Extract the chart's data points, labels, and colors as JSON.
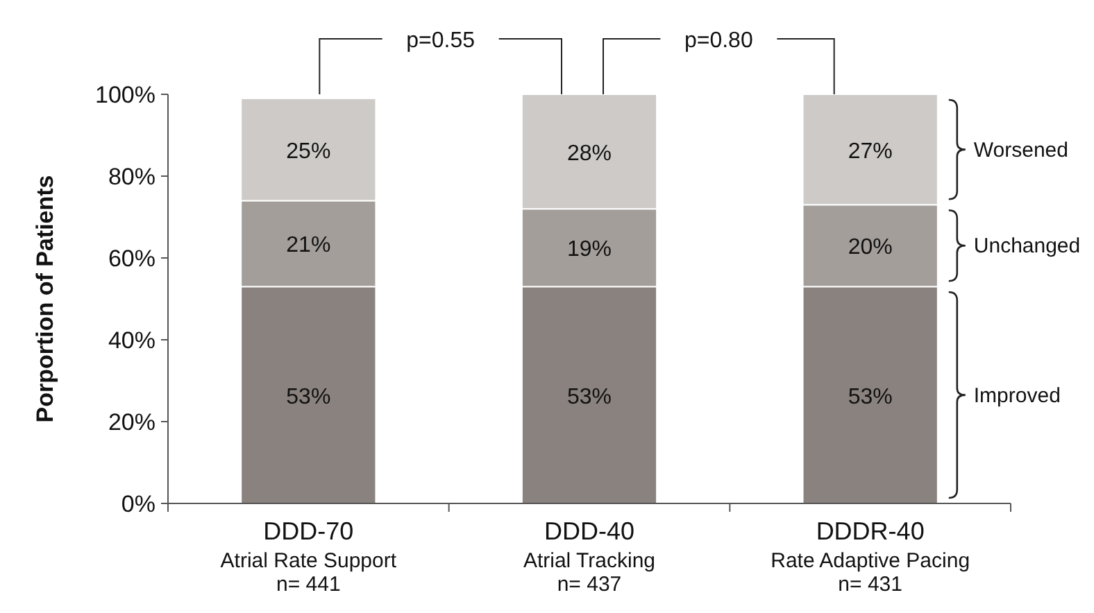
{
  "chart_data": {
    "type": "bar",
    "stacked": true,
    "ylabel": "Porportion of Patients",
    "categories": [
      "DDD-70\nAtrial Rate Support\nn= 441",
      "DDD-40\nAtrial Tracking\nn= 437",
      "DDDR-40\nRate Adaptive Pacing\nn= 431"
    ],
    "series": [
      {
        "name": "Improved",
        "color": "#8a827e",
        "values": [
          53,
          53,
          53
        ],
        "value_labels": [
          "53%",
          "53%",
          "53%"
        ]
      },
      {
        "name": "Unchanged",
        "color": "#a39e9a",
        "values": [
          21,
          19,
          20
        ],
        "value_labels": [
          "21%",
          "19%",
          "20%"
        ]
      },
      {
        "name": "Worsened",
        "color": "#cdcac7",
        "values": [
          25,
          28,
          27
        ],
        "value_labels": [
          "25%",
          "28%",
          "27%"
        ]
      }
    ],
    "ylim": [
      0,
      100
    ],
    "yticks": [
      {
        "value": 0,
        "label": "0%"
      },
      {
        "value": 20,
        "label": "20%"
      },
      {
        "value": 40,
        "label": "40%"
      },
      {
        "value": 60,
        "label": "60%"
      },
      {
        "value": 80,
        "label": "80%"
      },
      {
        "value": 100,
        "label": "100%"
      }
    ],
    "grid": false,
    "legend": "right",
    "annotations": [
      "p=0.55",
      "p=0.80"
    ]
  }
}
